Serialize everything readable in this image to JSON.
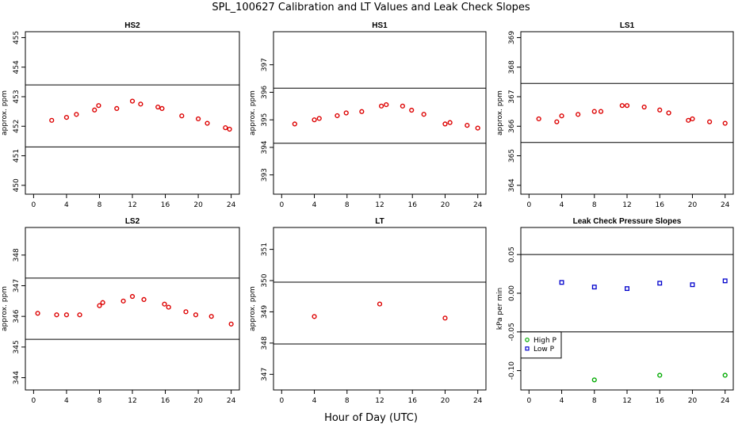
{
  "figure": {
    "title": "SPL_100627  Calibration and LT Values and Leak Check Slopes",
    "xlabel": "Hour of Day (UTC)"
  },
  "colors": {
    "points": "#dd0000",
    "high_p": "#00aa00",
    "low_p": "#0000cc",
    "line": "#000000"
  },
  "chart_data": [
    {
      "type": "scatter",
      "title": "HS2",
      "ylabel": "approx. ppm",
      "xlim": [
        -1,
        25
      ],
      "ylim": [
        449.7,
        455.2
      ],
      "xticks": [
        0,
        4,
        8,
        12,
        16,
        20,
        24
      ],
      "yticks": [
        450,
        451,
        452,
        453,
        454,
        455
      ],
      "hlines": [
        451.3,
        453.4
      ],
      "series": [
        {
          "color": "#dd0000",
          "shape": "circle",
          "x": [
            2.2,
            4,
            5.2,
            7.4,
            7.9,
            10.1,
            12,
            13,
            15.1,
            15.6,
            18,
            20,
            21.1,
            23.3,
            23.8
          ],
          "y": [
            452.2,
            452.3,
            452.4,
            452.55,
            452.7,
            452.6,
            452.85,
            452.75,
            452.65,
            452.6,
            452.35,
            452.25,
            452.1,
            451.95,
            451.9
          ]
        }
      ]
    },
    {
      "type": "scatter",
      "title": "HS1",
      "ylabel": "approx. ppm",
      "xlim": [
        -1,
        25
      ],
      "ylim": [
        392.3,
        398.2
      ],
      "xticks": [
        0,
        4,
        8,
        12,
        16,
        20,
        24
      ],
      "yticks": [
        393,
        394,
        395,
        396,
        397
      ],
      "hlines": [
        394.15,
        396.15
      ],
      "series": [
        {
          "color": "#dd0000",
          "shape": "circle",
          "x": [
            1.6,
            4,
            4.6,
            6.8,
            7.9,
            9.8,
            12.2,
            12.8,
            14.8,
            15.9,
            17.4,
            20,
            20.6,
            22.7,
            24
          ],
          "y": [
            394.85,
            395.0,
            395.05,
            395.15,
            395.25,
            395.3,
            395.5,
            395.55,
            395.5,
            395.35,
            395.2,
            394.85,
            394.9,
            394.8,
            394.7
          ]
        }
      ]
    },
    {
      "type": "scatter",
      "title": "LS1",
      "ylabel": "approx. ppm",
      "xlim": [
        -1,
        25
      ],
      "ylim": [
        363.7,
        369.2
      ],
      "xticks": [
        0,
        4,
        8,
        12,
        16,
        20,
        24
      ],
      "yticks": [
        364,
        365,
        366,
        367,
        368,
        369
      ],
      "hlines": [
        365.45,
        367.45
      ],
      "series": [
        {
          "color": "#dd0000",
          "shape": "circle",
          "x": [
            1.2,
            3.4,
            4,
            6,
            8,
            8.8,
            11.4,
            12,
            14.1,
            16,
            17.1,
            19.5,
            20,
            22.1,
            24
          ],
          "y": [
            366.25,
            366.15,
            366.35,
            366.4,
            366.5,
            366.5,
            366.7,
            366.7,
            366.65,
            366.55,
            366.45,
            366.2,
            366.25,
            366.15,
            366.1
          ]
        }
      ]
    },
    {
      "type": "scatter",
      "title": "LS2",
      "ylabel": "approx. ppm",
      "xlim": [
        -1,
        25
      ],
      "ylim": [
        343.6,
        348.9
      ],
      "xticks": [
        0,
        4,
        8,
        12,
        16,
        20,
        24
      ],
      "yticks": [
        344,
        345,
        346,
        347,
        348
      ],
      "hlines": [
        345.25,
        347.25
      ],
      "series": [
        {
          "color": "#dd0000",
          "shape": "circle",
          "x": [
            0.5,
            2.8,
            4,
            5.6,
            8,
            8.4,
            10.9,
            12,
            13.4,
            15.9,
            16.4,
            18.5,
            19.7,
            21.6,
            24
          ],
          "y": [
            346.1,
            346.05,
            346.05,
            346.05,
            346.35,
            346.45,
            346.5,
            346.65,
            346.55,
            346.4,
            346.3,
            346.15,
            346.05,
            346.0,
            345.75
          ]
        }
      ]
    },
    {
      "type": "scatter",
      "title": "LT",
      "ylabel": "approx. ppm",
      "xlim": [
        -1,
        25
      ],
      "ylim": [
        346.5,
        351.7
      ],
      "xticks": [
        0,
        4,
        8,
        12,
        16,
        20,
        24
      ],
      "yticks": [
        347,
        348,
        349,
        350,
        351
      ],
      "hlines": [
        347.97,
        349.95
      ],
      "series": [
        {
          "color": "#dd0000",
          "shape": "circle",
          "x": [
            4,
            12,
            20
          ],
          "y": [
            348.85,
            349.25,
            348.8
          ]
        }
      ]
    },
    {
      "type": "scatter",
      "title": "Leak Check Pressure Slopes",
      "ylabel": "kPa per min",
      "xlim": [
        -1,
        25
      ],
      "ylim": [
        -0.125,
        0.085
      ],
      "xticks": [
        0,
        4,
        8,
        12,
        16,
        20,
        24
      ],
      "yticks": [
        -0.1,
        -0.05,
        0.0,
        0.05
      ],
      "ytick_labels": [
        "-0.10",
        "-0.05",
        "0.00",
        "0.05"
      ],
      "hlines": [
        0.05,
        -0.05
      ],
      "legend": {
        "position": "lower-left",
        "entries": [
          "High P",
          "Low P"
        ]
      },
      "series": [
        {
          "name": "High P",
          "color": "#00aa00",
          "shape": "circle",
          "x": [
            8,
            16,
            24
          ],
          "y": [
            -0.112,
            -0.106,
            -0.106
          ]
        },
        {
          "name": "Low P",
          "color": "#0000cc",
          "shape": "square",
          "x": [
            4,
            8,
            12,
            16,
            20,
            24
          ],
          "y": [
            0.014,
            0.008,
            0.006,
            0.013,
            0.011,
            0.016
          ]
        }
      ]
    }
  ]
}
